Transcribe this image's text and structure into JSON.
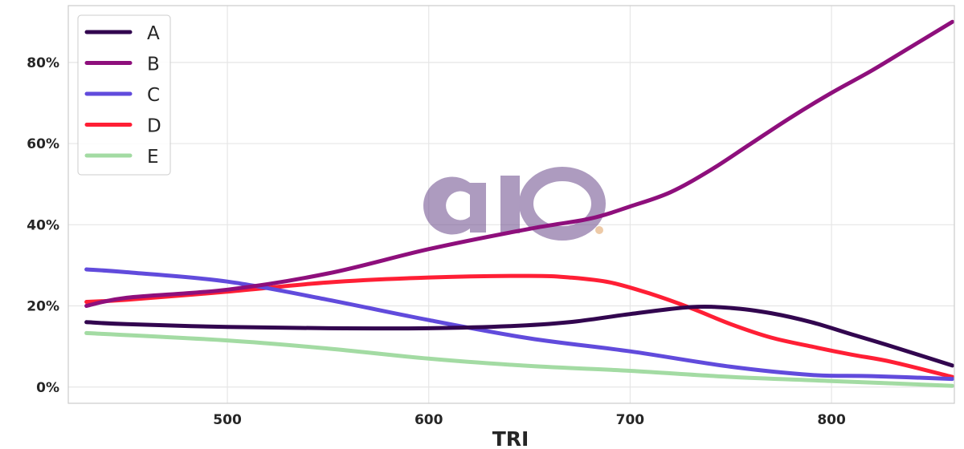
{
  "chart_data": {
    "type": "line",
    "xlabel": "TRI",
    "ylabel": "",
    "xlim": [
      421,
      861
    ],
    "ylim": [
      -0.04,
      0.94
    ],
    "x_ticks": [
      500,
      600,
      700,
      800
    ],
    "y_ticks": [
      0,
      0.2,
      0.4,
      0.6,
      0.8
    ],
    "y_tick_labels": [
      "0%",
      "20%",
      "40%",
      "60%",
      "80%"
    ],
    "grid": true,
    "legend_position": "top-left",
    "watermark_text": "aio",
    "series": [
      {
        "name": "A",
        "color": "#32064f",
        "x": [
          430,
          450,
          500,
          550,
          600,
          640,
          670,
          700,
          730,
          750,
          770,
          790,
          810,
          830,
          860
        ],
        "y": [
          0.16,
          0.155,
          0.148,
          0.145,
          0.145,
          0.15,
          0.16,
          0.18,
          0.197,
          0.195,
          0.182,
          0.16,
          0.13,
          0.1,
          0.053
        ]
      },
      {
        "name": "B",
        "color": "#8e0f7c",
        "x": [
          430,
          450,
          500,
          550,
          600,
          650,
          680,
          700,
          720,
          740,
          760,
          780,
          800,
          820,
          840,
          860
        ],
        "y": [
          0.2,
          0.22,
          0.24,
          0.28,
          0.34,
          0.39,
          0.415,
          0.445,
          0.48,
          0.535,
          0.6,
          0.665,
          0.725,
          0.78,
          0.84,
          0.9
        ]
      },
      {
        "name": "C",
        "color": "#614bdc",
        "x": [
          430,
          450,
          500,
          550,
          600,
          650,
          700,
          750,
          790,
          820,
          860
        ],
        "y": [
          0.29,
          0.283,
          0.26,
          0.215,
          0.165,
          0.12,
          0.088,
          0.05,
          0.03,
          0.027,
          0.02
        ]
      },
      {
        "name": "D",
        "color": "#ff1f35",
        "x": [
          430,
          450,
          500,
          550,
          600,
          650,
          670,
          690,
          710,
          730,
          750,
          770,
          790,
          810,
          830,
          860
        ],
        "y": [
          0.21,
          0.215,
          0.235,
          0.258,
          0.27,
          0.274,
          0.27,
          0.258,
          0.23,
          0.195,
          0.155,
          0.122,
          0.1,
          0.08,
          0.062,
          0.025
        ]
      },
      {
        "name": "E",
        "color": "#a3dba3",
        "x": [
          430,
          500,
          550,
          600,
          650,
          700,
          750,
          800,
          860
        ],
        "y": [
          0.133,
          0.115,
          0.095,
          0.07,
          0.052,
          0.04,
          0.025,
          0.015,
          0.003
        ]
      }
    ]
  }
}
